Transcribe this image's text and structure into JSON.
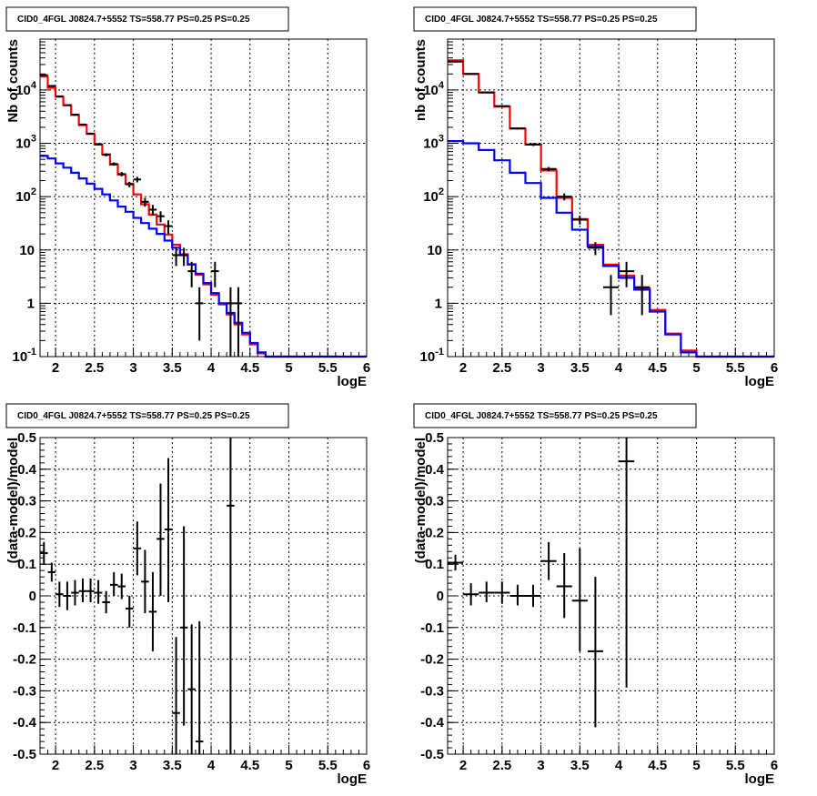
{
  "chart_data": [
    {
      "type": "line",
      "title": "CID0_4FGL J0824.7+5552 TS=558.77 PS=0.25 PS=0.25",
      "xlabel": "logE",
      "ylabel": "Nb of counts",
      "xscale": "linear",
      "yscale": "log",
      "xlim": [
        1.8,
        6.0
      ],
      "ylim": [
        0.1,
        90000
      ],
      "x_ticks": [
        "2",
        "2.5",
        "3",
        "3.5",
        "4",
        "4.5",
        "5",
        "5.5",
        "6"
      ],
      "y_ticks": [
        "10^-1",
        "1",
        "10",
        "10^2",
        "10^3",
        "10^4"
      ],
      "grid": true,
      "bin_edges": [
        1.8,
        1.9,
        2.0,
        2.1,
        2.2,
        2.3,
        2.4,
        2.5,
        2.6,
        2.7,
        2.8,
        2.9,
        3.0,
        3.1,
        3.2,
        3.3,
        3.4,
        3.5,
        3.6,
        3.7,
        3.8,
        3.9,
        4.0,
        4.1,
        4.2,
        4.3,
        4.4,
        4.5,
        4.6,
        4.7,
        4.8,
        4.9,
        5.0,
        5.1,
        5.2,
        5.3,
        5.4,
        5.5,
        5.6,
        5.7,
        5.8,
        5.9,
        6.0
      ],
      "series": [
        {
          "color": "#ff0000",
          "values": [
            18000,
            11000,
            7500,
            5200,
            3400,
            2200,
            1500,
            950,
            620,
            400,
            260,
            175,
            110,
            72,
            46,
            30,
            19.5,
            12.5,
            8.3,
            5.3,
            3.45,
            2.25,
            1.45,
            0.95,
            0.62,
            0.4,
            0.26,
            0.17,
            0.115,
            0.1,
            0.1,
            0.1,
            0.1,
            0.1,
            0.1,
            0.1,
            0.1,
            0.1,
            0.1,
            0.1,
            0.1,
            0.1
          ]
        },
        {
          "color": "#0000ff",
          "values": [
            580,
            520,
            420,
            350,
            280,
            220,
            175,
            140,
            110,
            85,
            65,
            52,
            40,
            32,
            25,
            20,
            15,
            11,
            8.0,
            5.4,
            3.6,
            2.4,
            1.55,
            1.0,
            0.66,
            0.43,
            0.28,
            0.18,
            0.12,
            0.1,
            0.1,
            0.1,
            0.1,
            0.1,
            0.1,
            0.1,
            0.1,
            0.1,
            0.1,
            0.1,
            0.1,
            0.1
          ]
        }
      ],
      "points": [
        {
          "x": 1.85,
          "y": 19000,
          "xerr": 0.05,
          "ylo": 18700,
          "yhi": 19300
        },
        {
          "x": 1.95,
          "y": 11900,
          "xerr": 0.05,
          "ylo": 11700,
          "yhi": 12100
        },
        {
          "x": 2.05,
          "y": 7600,
          "xerr": 0.05,
          "ylo": 7450,
          "yhi": 7750
        },
        {
          "x": 2.15,
          "y": 5200,
          "xerr": 0.05,
          "ylo": 5060,
          "yhi": 5340
        },
        {
          "x": 2.25,
          "y": 3450,
          "xerr": 0.05,
          "ylo": 3340,
          "yhi": 3560
        },
        {
          "x": 2.35,
          "y": 2250,
          "xerr": 0.05,
          "ylo": 2160,
          "yhi": 2340
        },
        {
          "x": 2.45,
          "y": 1520,
          "xerr": 0.05,
          "ylo": 1450,
          "yhi": 1590
        },
        {
          "x": 2.55,
          "y": 960,
          "xerr": 0.05,
          "ylo": 910,
          "yhi": 1010
        },
        {
          "x": 2.65,
          "y": 610,
          "xerr": 0.05,
          "ylo": 570,
          "yhi": 650
        },
        {
          "x": 2.75,
          "y": 410,
          "xerr": 0.05,
          "ylo": 380,
          "yhi": 440
        },
        {
          "x": 2.85,
          "y": 265,
          "xerr": 0.05,
          "ylo": 240,
          "yhi": 290
        },
        {
          "x": 2.95,
          "y": 170,
          "xerr": 0.05,
          "ylo": 150,
          "yhi": 190
        },
        {
          "x": 3.05,
          "y": 210,
          "xerr": 0.05,
          "ylo": 185,
          "yhi": 235
        },
        {
          "x": 3.15,
          "y": 80,
          "xerr": 0.05,
          "ylo": 65,
          "yhi": 95
        },
        {
          "x": 3.25,
          "y": 57,
          "xerr": 0.05,
          "ylo": 45,
          "yhi": 70
        },
        {
          "x": 3.35,
          "y": 43,
          "xerr": 0.05,
          "ylo": 33,
          "yhi": 53
        },
        {
          "x": 3.45,
          "y": 28,
          "xerr": 0.05,
          "ylo": 20,
          "yhi": 36
        },
        {
          "x": 3.55,
          "y": 8.0,
          "xerr": 0.05,
          "ylo": 5.0,
          "yhi": 11.0
        },
        {
          "x": 3.65,
          "y": 8.0,
          "xerr": 0.05,
          "ylo": 5.0,
          "yhi": 11.0
        },
        {
          "x": 3.75,
          "y": 4.0,
          "xerr": 0.05,
          "ylo": 2.0,
          "yhi": 6.0
        },
        {
          "x": 3.85,
          "y": 1.0,
          "xerr": 0.05,
          "ylo": 0.2,
          "yhi": 2.0
        },
        {
          "x": 4.05,
          "y": 4.0,
          "xerr": 0.05,
          "ylo": 2.0,
          "yhi": 6.0
        },
        {
          "x": 4.25,
          "y": 1.0,
          "xerr": 0.05,
          "ylo": 0.1,
          "yhi": 2.0
        },
        {
          "x": 4.35,
          "y": 1.0,
          "xerr": 0.05,
          "ylo": 0.1,
          "yhi": 2.0
        }
      ]
    },
    {
      "type": "line",
      "title": "CID0_4FGL J0824.7+5552 TS=558.77 PS=0.25 PS=0.25",
      "xlabel": "logE",
      "ylabel": "nb of counts",
      "xscale": "linear",
      "yscale": "log",
      "xlim": [
        1.8,
        6.0
      ],
      "ylim": [
        0.1,
        90000
      ],
      "x_ticks": [
        "2",
        "2.5",
        "3",
        "3.5",
        "4",
        "4.5",
        "5",
        "5.5",
        "6"
      ],
      "y_ticks": [
        "10^-1",
        "1",
        "10",
        "10^2",
        "10^3",
        "10^4"
      ],
      "grid": true,
      "bin_edges": [
        1.8,
        2.0,
        2.2,
        2.4,
        2.6,
        2.8,
        3.0,
        3.2,
        3.4,
        3.6,
        3.8,
        4.0,
        4.2,
        4.4,
        4.6,
        4.8,
        5.0,
        5.2,
        5.4,
        5.6,
        5.8,
        6.0
      ],
      "series": [
        {
          "color": "#ff0000",
          "values": [
            36000,
            20000,
            9000,
            4900,
            1900,
            950,
            310,
            95,
            38,
            12.5,
            5.3,
            3.3,
            1.9,
            0.75,
            0.27,
            0.13,
            0.1,
            0.1,
            0.1,
            0.1,
            0.1
          ]
        },
        {
          "color": "#0000ff",
          "values": [
            1100,
            1000,
            750,
            480,
            280,
            180,
            95,
            50,
            24,
            11.5,
            5.0,
            3.0,
            1.8,
            0.7,
            0.26,
            0.12,
            0.1,
            0.1,
            0.1,
            0.1,
            0.1
          ]
        }
      ],
      "points": [
        {
          "x": 1.9,
          "y": 34000,
          "xerr": 0.1,
          "ylo": 33600,
          "yhi": 34400
        },
        {
          "x": 2.1,
          "y": 20000,
          "xerr": 0.1,
          "ylo": 19700,
          "yhi": 20300
        },
        {
          "x": 2.3,
          "y": 9000,
          "xerr": 0.1,
          "ylo": 8800,
          "yhi": 9200
        },
        {
          "x": 2.5,
          "y": 5000,
          "xerr": 0.1,
          "ylo": 4850,
          "yhi": 5150
        },
        {
          "x": 2.7,
          "y": 1900,
          "xerr": 0.1,
          "ylo": 1810,
          "yhi": 1990
        },
        {
          "x": 2.9,
          "y": 950,
          "xerr": 0.1,
          "ylo": 890,
          "yhi": 1010
        },
        {
          "x": 3.1,
          "y": 330,
          "xerr": 0.1,
          "ylo": 300,
          "yhi": 360
        },
        {
          "x": 3.3,
          "y": 100,
          "xerr": 0.1,
          "ylo": 85,
          "yhi": 115
        },
        {
          "x": 3.5,
          "y": 37,
          "xerr": 0.1,
          "ylo": 30,
          "yhi": 44
        },
        {
          "x": 3.7,
          "y": 11,
          "xerr": 0.1,
          "ylo": 8,
          "yhi": 14
        },
        {
          "x": 3.9,
          "y": 2.0,
          "xerr": 0.1,
          "ylo": 0.6,
          "yhi": 3.4
        },
        {
          "x": 4.1,
          "y": 4.0,
          "xerr": 0.1,
          "ylo": 2.0,
          "yhi": 6.0
        },
        {
          "x": 4.3,
          "y": 2.0,
          "xerr": 0.1,
          "ylo": 0.6,
          "yhi": 3.4
        }
      ]
    },
    {
      "type": "scatter",
      "title": "CID0_4FGL J0824.7+5552 TS=558.77 PS=0.25 PS=0.25",
      "xlabel": "logE",
      "ylabel": "(data-model)/model",
      "xscale": "linear",
      "yscale": "linear",
      "xlim": [
        1.8,
        6.0
      ],
      "ylim": [
        -0.5,
        0.5
      ],
      "x_ticks": [
        "2",
        "2.5",
        "3",
        "3.5",
        "4",
        "4.5",
        "5",
        "5.5",
        "6"
      ],
      "y_ticks": [
        "-0.5",
        "-0.4",
        "-0.3",
        "-0.2",
        "-0.1",
        "0",
        "0.1",
        "0.2",
        "0.3",
        "0.4",
        "0.5"
      ],
      "grid": true,
      "points": [
        {
          "x": 1.85,
          "y": 0.135,
          "xerr": 0.05,
          "ylo": 0.1,
          "yhi": 0.17
        },
        {
          "x": 1.95,
          "y": 0.075,
          "xerr": 0.05,
          "ylo": 0.045,
          "yhi": 0.105
        },
        {
          "x": 2.05,
          "y": 0.005,
          "xerr": 0.05,
          "ylo": -0.035,
          "yhi": 0.045
        },
        {
          "x": 2.15,
          "y": 0.0,
          "xerr": 0.05,
          "ylo": -0.045,
          "yhi": 0.045
        },
        {
          "x": 2.25,
          "y": 0.01,
          "xerr": 0.05,
          "ylo": -0.03,
          "yhi": 0.05
        },
        {
          "x": 2.35,
          "y": 0.015,
          "xerr": 0.05,
          "ylo": -0.02,
          "yhi": 0.055
        },
        {
          "x": 2.45,
          "y": 0.015,
          "xerr": 0.05,
          "ylo": -0.02,
          "yhi": 0.055
        },
        {
          "x": 2.55,
          "y": 0.01,
          "xerr": 0.05,
          "ylo": -0.025,
          "yhi": 0.05
        },
        {
          "x": 2.65,
          "y": -0.02,
          "xerr": 0.05,
          "ylo": -0.055,
          "yhi": 0.015
        },
        {
          "x": 2.75,
          "y": 0.035,
          "xerr": 0.05,
          "ylo": 0.0,
          "yhi": 0.075
        },
        {
          "x": 2.85,
          "y": 0.03,
          "xerr": 0.05,
          "ylo": -0.01,
          "yhi": 0.07
        },
        {
          "x": 2.95,
          "y": -0.04,
          "xerr": 0.05,
          "ylo": -0.1,
          "yhi": 0.0
        },
        {
          "x": 3.05,
          "y": 0.15,
          "xerr": 0.05,
          "ylo": 0.065,
          "yhi": 0.235
        },
        {
          "x": 3.15,
          "y": 0.045,
          "xerr": 0.05,
          "ylo": -0.055,
          "yhi": 0.145
        },
        {
          "x": 3.25,
          "y": -0.05,
          "xerr": 0.05,
          "ylo": -0.175,
          "yhi": 0.075
        },
        {
          "x": 3.35,
          "y": 0.18,
          "xerr": 0.05,
          "ylo": 0.0,
          "yhi": 0.355
        },
        {
          "x": 3.45,
          "y": 0.21,
          "xerr": 0.05,
          "ylo": -0.02,
          "yhi": 0.435
        },
        {
          "x": 3.55,
          "y": -0.37,
          "xerr": 0.05,
          "ylo": -0.5,
          "yhi": -0.13
        },
        {
          "x": 3.65,
          "y": -0.1,
          "xerr": 0.05,
          "ylo": -0.41,
          "yhi": 0.22
        },
        {
          "x": 3.75,
          "y": -0.295,
          "xerr": 0.05,
          "ylo": -0.5,
          "yhi": -0.09
        },
        {
          "x": 3.85,
          "y": -0.46,
          "xerr": 0.05,
          "ylo": -0.5,
          "yhi": -0.08
        },
        {
          "x": 4.25,
          "y": 0.285,
          "xerr": 0.05,
          "ylo": -0.5,
          "yhi": 0.5
        }
      ]
    },
    {
      "type": "scatter",
      "title": "CID0_4FGL J0824.7+5552 TS=558.77 PS=0.25 PS=0.25",
      "xlabel": "logE",
      "ylabel": "(data-model)/model",
      "xscale": "linear",
      "yscale": "linear",
      "xlim": [
        1.8,
        6.0
      ],
      "ylim": [
        -0.5,
        0.5
      ],
      "x_ticks": [
        "2",
        "2.5",
        "3",
        "3.5",
        "4",
        "4.5",
        "5",
        "5.5",
        "6"
      ],
      "y_ticks": [
        "-0.5",
        "-0.4",
        "-0.3",
        "-0.2",
        "-0.1",
        "0",
        "0.1",
        "0.2",
        "0.3",
        "0.4",
        "0.5"
      ],
      "grid": true,
      "points": [
        {
          "x": 1.9,
          "y": 0.105,
          "xerr": 0.1,
          "ylo": 0.08,
          "yhi": 0.13
        },
        {
          "x": 2.1,
          "y": 0.005,
          "xerr": 0.1,
          "ylo": -0.03,
          "yhi": 0.04
        },
        {
          "x": 2.3,
          "y": 0.01,
          "xerr": 0.1,
          "ylo": -0.02,
          "yhi": 0.045
        },
        {
          "x": 2.5,
          "y": 0.01,
          "xerr": 0.1,
          "ylo": -0.025,
          "yhi": 0.045
        },
        {
          "x": 2.7,
          "y": 0.0,
          "xerr": 0.1,
          "ylo": -0.03,
          "yhi": 0.035
        },
        {
          "x": 2.9,
          "y": 0.0,
          "xerr": 0.1,
          "ylo": -0.035,
          "yhi": 0.035
        },
        {
          "x": 3.1,
          "y": 0.11,
          "xerr": 0.1,
          "ylo": 0.05,
          "yhi": 0.17
        },
        {
          "x": 3.3,
          "y": 0.03,
          "xerr": 0.1,
          "ylo": -0.07,
          "yhi": 0.135
        },
        {
          "x": 3.5,
          "y": -0.015,
          "xerr": 0.1,
          "ylo": -0.175,
          "yhi": 0.15
        },
        {
          "x": 3.7,
          "y": -0.175,
          "xerr": 0.1,
          "ylo": -0.415,
          "yhi": 0.06
        },
        {
          "x": 4.1,
          "y": 0.425,
          "xerr": 0.1,
          "ylo": -0.29,
          "yhi": 0.5
        }
      ]
    }
  ]
}
